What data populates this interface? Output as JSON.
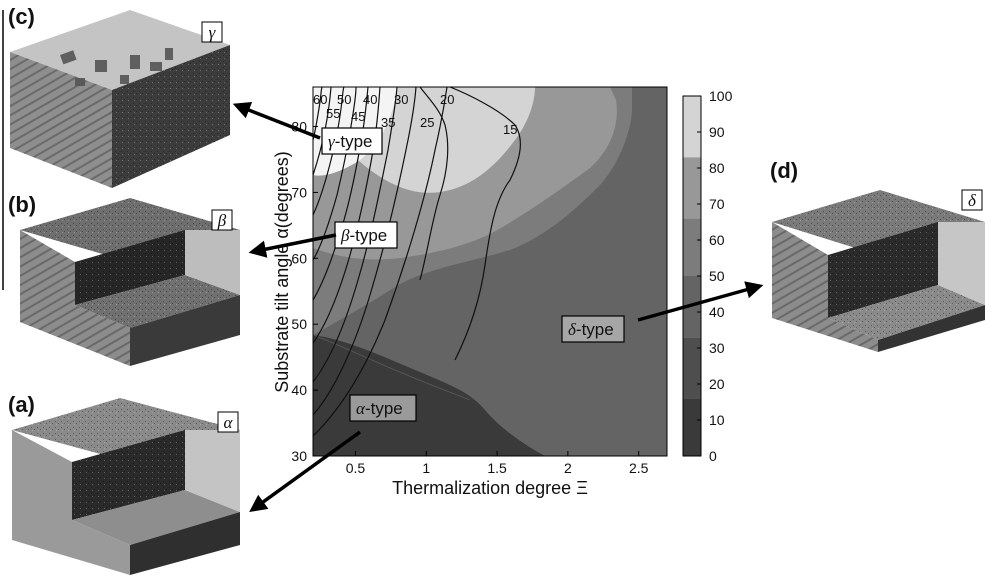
{
  "panels": [
    {
      "letter": "(c)",
      "symbol": "γ",
      "face_light": "#9a9a9a",
      "face_dark": "#3a3a3a",
      "top": "#b9b9b9"
    },
    {
      "letter": "(b)",
      "symbol": "β",
      "face_light": "#8a8a8a",
      "face_dark": "#2e2e2e",
      "top": "#707070"
    },
    {
      "letter": "(a)",
      "symbol": "α",
      "face_light": "#9c9c9c",
      "face_dark": "#2a2a2a",
      "top": "#8a8a8a"
    },
    {
      "letter": "(d)",
      "symbol": "δ",
      "face_light": "#8c8c8c",
      "face_dark": "#2c2c2c",
      "top": "#7a7a7a"
    }
  ],
  "type_labels": [
    {
      "greek": "γ",
      "suffix": "-type"
    },
    {
      "greek": "β",
      "suffix": "-type"
    },
    {
      "greek": "α",
      "suffix": "-type"
    },
    {
      "greek": "δ",
      "suffix": "-type"
    }
  ],
  "chart_data": {
    "type": "heatmap",
    "xlabel": "Thermalization degree Ξ",
    "ylabel": "Substrate tilt angle α(degrees)",
    "xlim": [
      0.2,
      2.7
    ],
    "ylim": [
      30,
      86
    ],
    "xticks": [
      0.5,
      1,
      1.5,
      2,
      2.5
    ],
    "xtick_labels": [
      "0.5",
      "1",
      "1.5",
      "2",
      "2.5"
    ],
    "yticks": [
      30,
      40,
      50,
      60,
      70,
      80
    ],
    "ytick_labels": [
      "30",
      "40",
      "50",
      "60",
      "70",
      "80"
    ],
    "colorbar": {
      "range": [
        0,
        100
      ],
      "ticks": [
        0,
        10,
        20,
        30,
        40,
        50,
        60,
        70,
        80,
        90,
        100
      ],
      "levels": [
        {
          "from": 0,
          "to": 16,
          "color": "#3a3a3a"
        },
        {
          "from": 16,
          "to": 33,
          "color": "#4e4e4e"
        },
        {
          "from": 33,
          "to": 50,
          "color": "#646464"
        },
        {
          "from": 50,
          "to": 66,
          "color": "#7c7c7c"
        },
        {
          "from": 66,
          "to": 83,
          "color": "#989898"
        },
        {
          "from": 83,
          "to": 100,
          "color": "#d4d4d4"
        },
        {
          "from": 100,
          "to": 100,
          "color": "#f4f4f4"
        }
      ]
    },
    "contour_labels": [
      "60",
      "55",
      "50",
      "45",
      "40",
      "35",
      "30",
      "25",
      "20",
      "15"
    ],
    "regions": [
      "γ-type",
      "β-type",
      "α-type",
      "δ-type"
    ]
  }
}
